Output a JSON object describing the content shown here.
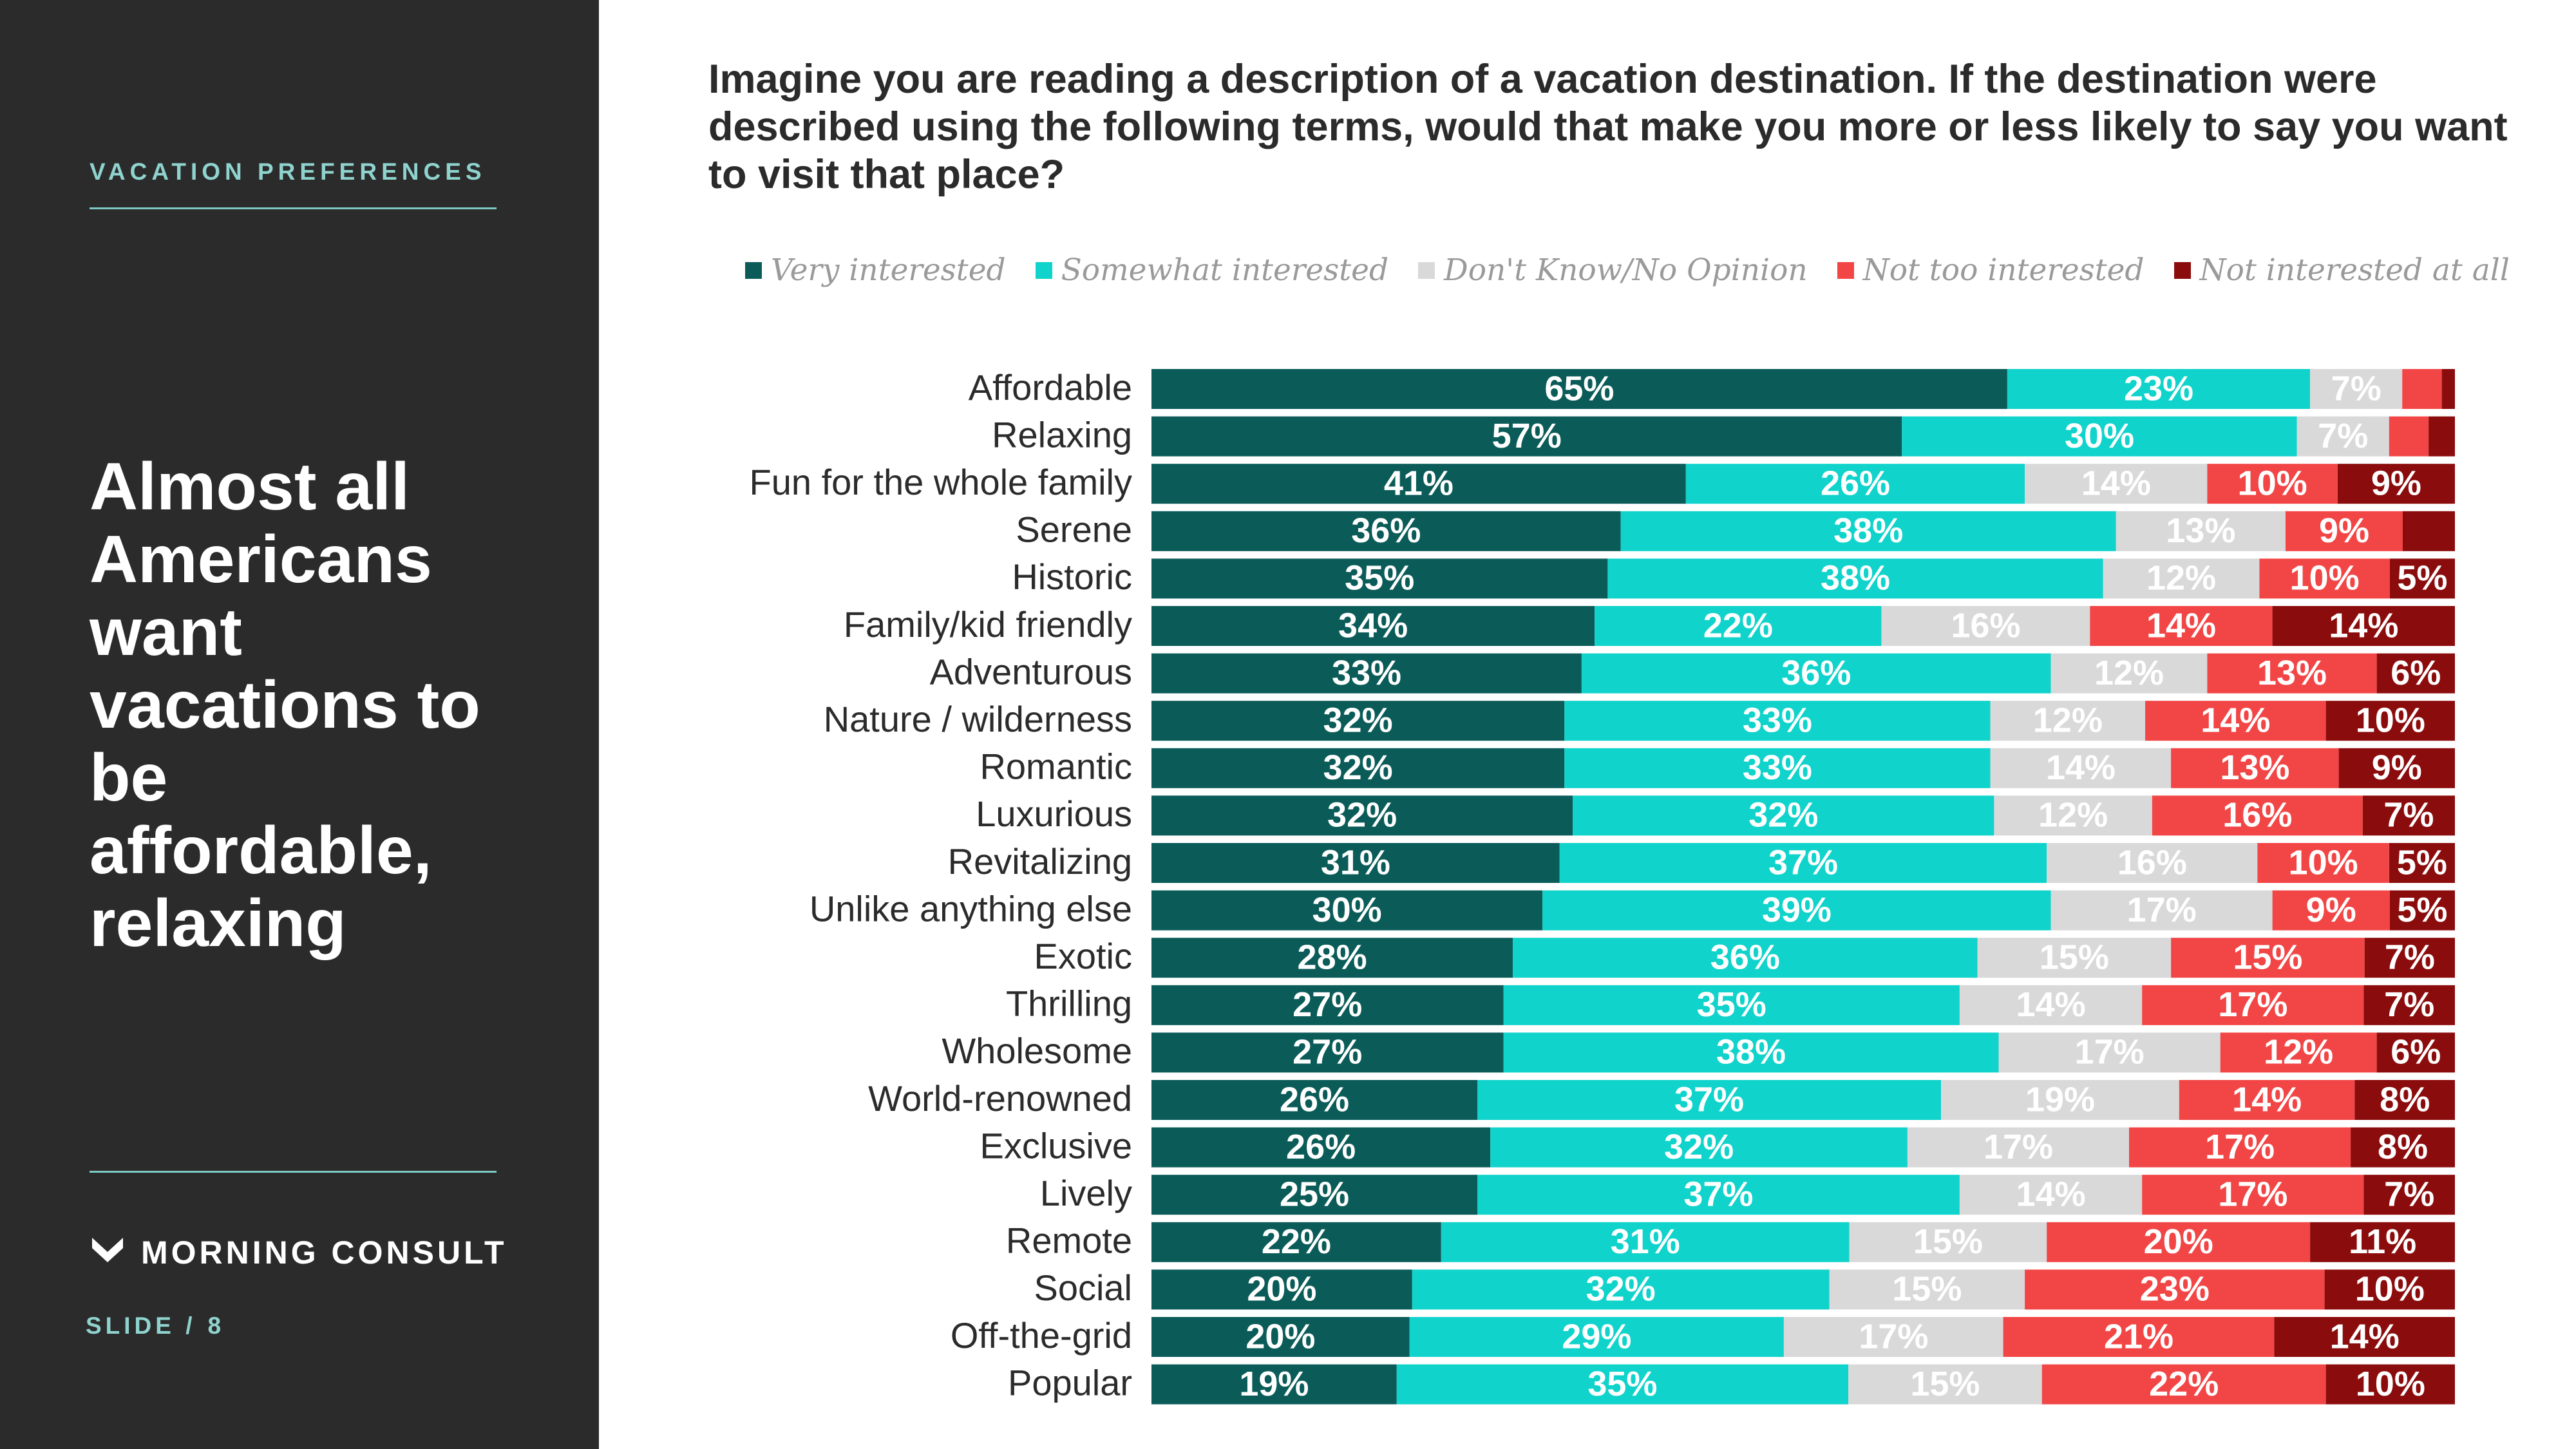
{
  "sidebar": {
    "section_label": "VACATION PREFERENCES",
    "headline": "Almost all Americans want vacations to be affordable, relaxing",
    "logo_text": "MORNING CONSULT",
    "slide_label": "SLIDE /",
    "slide_number": "8",
    "colors": {
      "background": "#2b2b2b",
      "accent": "#8fd3cf"
    }
  },
  "question": "Imagine you are reading a description of a vacation destination. If the destination were described using the following terms, would that make you more or less likely to say you want to visit that place?",
  "chart_data": {
    "type": "bar",
    "orientation": "horizontal",
    "stacked": "100%",
    "title": "Imagine you are reading a description of a vacation destination. If the destination were described using the following terms, would that make you more or less likely to say you want to visit that place?",
    "legend_position": "top",
    "grid": false,
    "categories": [
      "Affordable",
      "Relaxing",
      "Fun for the whole family",
      "Serene",
      "Historic",
      "Family/kid friendly",
      "Adventurous",
      "Nature / wilderness",
      "Romantic",
      "Luxurious",
      "Revitalizing",
      "Unlike anything else",
      "Exotic",
      "Thrilling",
      "Wholesome",
      "World-renowned",
      "Exclusive",
      "Lively",
      "Remote",
      "Social",
      "Off-the-grid",
      "Popular"
    ],
    "series": [
      {
        "name": "Very interested",
        "color": "#0b5c59",
        "label_color": "#ffffff",
        "values": [
          65,
          57,
          41,
          36,
          35,
          34,
          33,
          32,
          32,
          32,
          31,
          30,
          28,
          27,
          27,
          26,
          26,
          25,
          22,
          20,
          20,
          19
        ],
        "labels": [
          "65%",
          "57%",
          "41%",
          "36%",
          "35%",
          "34%",
          "33%",
          "32%",
          "32%",
          "32%",
          "31%",
          "30%",
          "28%",
          "27%",
          "27%",
          "26%",
          "26%",
          "25%",
          "22%",
          "20%",
          "20%",
          "19%"
        ]
      },
      {
        "name": "Somewhat interested",
        "color": "#10d3cb",
        "label_color": "#ffffff",
        "values": [
          23,
          30,
          26,
          38,
          38,
          22,
          36,
          33,
          33,
          32,
          37,
          39,
          36,
          35,
          38,
          37,
          32,
          37,
          31,
          32,
          29,
          35
        ],
        "labels": [
          "23%",
          "30%",
          "26%",
          "38%",
          "38%",
          "22%",
          "36%",
          "33%",
          "33%",
          "32%",
          "37%",
          "39%",
          "36%",
          "35%",
          "38%",
          "37%",
          "32%",
          "37%",
          "31%",
          "32%",
          "29%",
          "35%"
        ]
      },
      {
        "name": "Don't Know/No Opinion",
        "color": "#d9d9d9",
        "label_color": "#ffffff",
        "values": [
          7,
          7,
          14,
          13,
          12,
          16,
          12,
          12,
          14,
          12,
          16,
          17,
          15,
          14,
          17,
          19,
          17,
          14,
          15,
          15,
          17,
          15
        ],
        "labels": [
          "7%",
          "7%",
          "14%",
          "13%",
          "12%",
          "16%",
          "12%",
          "12%",
          "14%",
          "12%",
          "16%",
          "17%",
          "15%",
          "14%",
          "17%",
          "19%",
          "17%",
          "14%",
          "15%",
          "15%",
          "17%",
          "15%"
        ]
      },
      {
        "name": "Not too interested",
        "color": "#f24646",
        "label_color": "#ffffff",
        "values": [
          3,
          3,
          10,
          9,
          10,
          14,
          13,
          14,
          13,
          16,
          10,
          9,
          15,
          17,
          12,
          14,
          17,
          17,
          20,
          23,
          21,
          22
        ],
        "labels": [
          "",
          "",
          "10%",
          "9%",
          "10%",
          "14%",
          "13%",
          "14%",
          "13%",
          "16%",
          "10%",
          "9%",
          "15%",
          "17%",
          "12%",
          "14%",
          "17%",
          "17%",
          "20%",
          "23%",
          "21%",
          "22%"
        ]
      },
      {
        "name": "Not interested at all",
        "color": "#8b0c0c",
        "label_color": "#ffffff",
        "values": [
          1,
          2,
          9,
          4,
          5,
          14,
          6,
          10,
          9,
          7,
          5,
          5,
          7,
          7,
          6,
          8,
          8,
          7,
          11,
          10,
          14,
          10
        ],
        "labels": [
          "",
          "",
          "9%",
          "",
          "5%",
          "14%",
          "6%",
          "10%",
          "9%",
          "7%",
          "5%",
          "5%",
          "7%",
          "7%",
          "6%",
          "8%",
          "8%",
          "7%",
          "11%",
          "10%",
          "14%",
          "10%"
        ]
      }
    ]
  }
}
